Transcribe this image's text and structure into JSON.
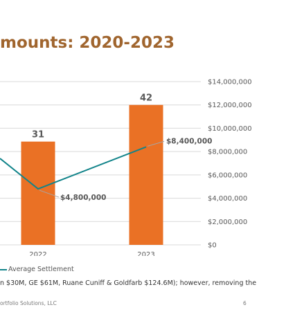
{
  "page": {
    "title": "mounts: 2020-2023",
    "footnote": "n $30M, GE $61M, Ruane Cuniff & Goldfarb $124.6M); however, removing the",
    "footer_left": "ortfolio Solutions, LLC",
    "page_number": "6"
  },
  "colors": {
    "title": "#a0652e",
    "bar": "#ea7125",
    "line": "#12848a",
    "grid": "#d9d9d9"
  },
  "chart_data": {
    "type": "bar",
    "categories": [
      "2022",
      "2023"
    ],
    "series": [
      {
        "name": "",
        "type": "bar",
        "values": [
          31,
          42
        ],
        "data_labels": [
          "31",
          "42"
        ]
      },
      {
        "name": "Average Settlement",
        "type": "line",
        "values": [
          4800000,
          8400000
        ],
        "data_labels": [
          "$4,800,000",
          "$8,400,000"
        ]
      }
    ],
    "y_right_ticks": [
      "$14,000,000",
      "$12,000,000",
      "$10,000,000",
      "$8,000,000",
      "$6,000,000",
      "$4,000,000",
      "$2,000,000",
      "$0"
    ],
    "y_right_range": [
      0,
      14000000
    ],
    "y_left_range": [
      0,
      49
    ],
    "grid": true,
    "legend": [
      {
        "label": "Average Settlement",
        "marker": "line"
      }
    ],
    "legend_position": "bottom"
  }
}
